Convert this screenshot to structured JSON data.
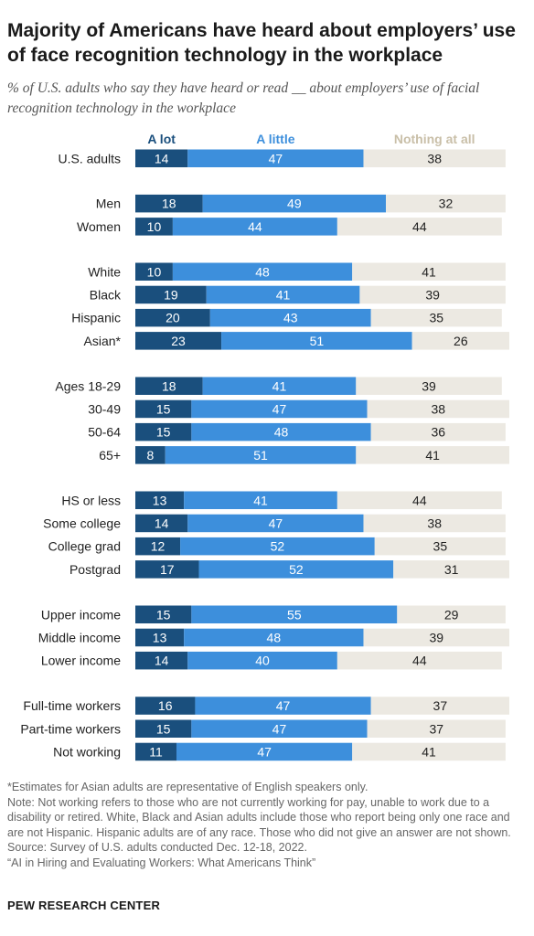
{
  "title": "Majority of Americans have heard about employers’ use of face recognition technology in the workplace",
  "subtitle": "% of U.S. adults who say they have heard or read __ about employers’ use of facial recognition technology in the workplace",
  "colors": {
    "a_lot": "#1a4f7d",
    "a_little": "#3d8fdc",
    "nothing": "#ece9e2"
  },
  "chart_data": {
    "type": "bar",
    "stacked": true,
    "orientation": "horizontal",
    "categories": [
      "U.S. adults",
      "Men",
      "Women",
      "White",
      "Black",
      "Hispanic",
      "Asian*",
      "Ages 18-29",
      "30-49",
      "50-64",
      "65+",
      "HS or less",
      "Some college",
      "College grad",
      "Postgrad",
      "Upper income",
      "Middle income",
      "Lower income",
      "Full-time workers",
      "Part-time workers",
      "Not working"
    ],
    "groups": [
      [
        0
      ],
      [
        1,
        2
      ],
      [
        3,
        4,
        5,
        6
      ],
      [
        7,
        8,
        9,
        10
      ],
      [
        11,
        12,
        13,
        14
      ],
      [
        15,
        16,
        17
      ],
      [
        18,
        19,
        20
      ]
    ],
    "series": [
      {
        "name": "A lot",
        "values": [
          14,
          18,
          10,
          10,
          19,
          20,
          23,
          18,
          15,
          15,
          8,
          13,
          14,
          12,
          17,
          15,
          13,
          14,
          16,
          15,
          11
        ]
      },
      {
        "name": "A little",
        "values": [
          47,
          49,
          44,
          48,
          41,
          43,
          51,
          41,
          47,
          48,
          51,
          41,
          47,
          52,
          52,
          55,
          48,
          40,
          47,
          47,
          47
        ]
      },
      {
        "name": "Nothing at all",
        "values": [
          38,
          32,
          44,
          41,
          39,
          35,
          26,
          39,
          38,
          36,
          41,
          44,
          38,
          35,
          31,
          29,
          39,
          44,
          37,
          37,
          41
        ]
      }
    ],
    "xlim": [
      0,
      100
    ]
  },
  "notes": [
    "*Estimates for Asian adults are representative of English speakers only.",
    "Note: Not working refers to those who are not currently working for pay, unable to work due to a disability or retired. White, Black and Asian adults include those who report being only one race and are not Hispanic. Hispanic adults are of any race. Those who did not give an answer are not shown.",
    "Source: Survey of U.S. adults conducted Dec. 12-18, 2022.",
    "“AI in Hiring and Evaluating Workers: What Americans Think”"
  ],
  "footer": "PEW RESEARCH CENTER"
}
